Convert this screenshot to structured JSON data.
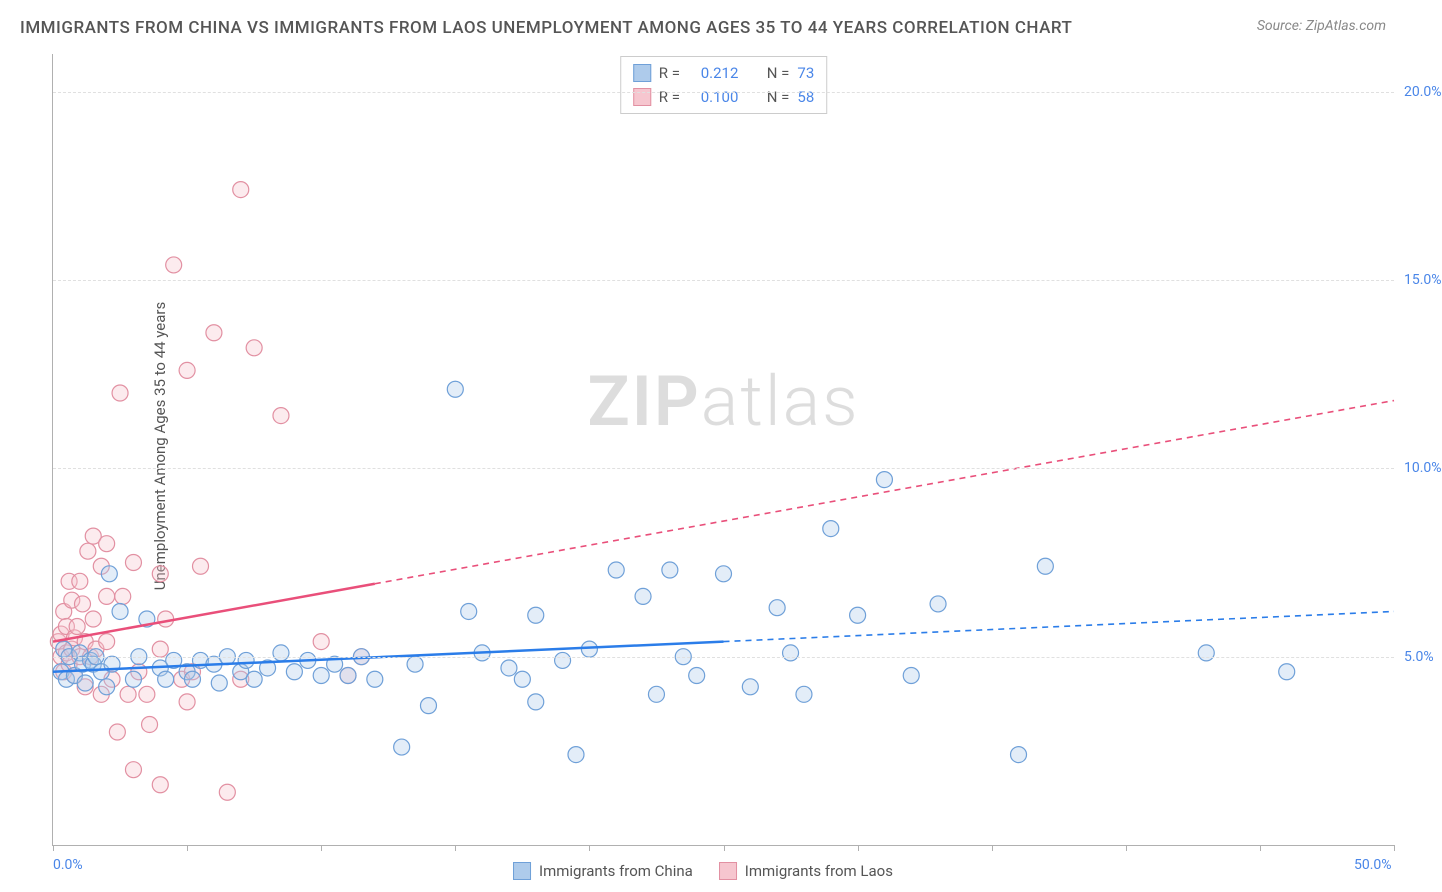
{
  "title": "IMMIGRANTS FROM CHINA VS IMMIGRANTS FROM LAOS UNEMPLOYMENT AMONG AGES 35 TO 44 YEARS CORRELATION CHART",
  "source": "Source: ZipAtlas.com",
  "ylabel": "Unemployment Among Ages 35 to 44 years",
  "watermark_a": "ZIP",
  "watermark_b": "atlas",
  "chart": {
    "type": "scatter",
    "xlim": [
      0,
      50
    ],
    "ylim": [
      0,
      21
    ],
    "x_ticks": [
      0,
      5,
      10,
      15,
      20,
      25,
      30,
      35,
      40,
      45,
      50
    ],
    "y_ticks_labeled": [
      5,
      10,
      15,
      20
    ],
    "x_tick_labels_shown": {
      "0": "0.0%",
      "50": "50.0%"
    },
    "y_tick_labels": {
      "5": "5.0%",
      "10": "10.0%",
      "15": "15.0%",
      "20": "20.0%"
    },
    "grid_color": "#e0e0e0",
    "axis_color": "#b0b0b0",
    "background_color": "#ffffff",
    "tick_label_color": "#4a86e8",
    "marker_radius": 8,
    "series": [
      {
        "name": "Immigrants from China",
        "color_fill": "#aecbeb",
        "color_stroke": "#6fa0d8",
        "trend_color": "#2b7de9",
        "R": "0.212",
        "N": "73",
        "trend": {
          "x1": 0,
          "y1": 4.6,
          "x2": 50,
          "y2": 6.2,
          "solid_until_x": 25
        },
        "points": [
          [
            0.3,
            4.6
          ],
          [
            0.4,
            5.2
          ],
          [
            0.5,
            4.4
          ],
          [
            0.6,
            5.0
          ],
          [
            0.8,
            4.5
          ],
          [
            1.0,
            5.1
          ],
          [
            1.1,
            4.8
          ],
          [
            1.2,
            4.3
          ],
          [
            1.4,
            4.9
          ],
          [
            1.5,
            4.8
          ],
          [
            1.6,
            5.0
          ],
          [
            1.8,
            4.6
          ],
          [
            2.0,
            4.2
          ],
          [
            2.1,
            7.2
          ],
          [
            2.2,
            4.8
          ],
          [
            2.5,
            6.2
          ],
          [
            3.0,
            4.4
          ],
          [
            3.2,
            5.0
          ],
          [
            3.5,
            6.0
          ],
          [
            4.0,
            4.7
          ],
          [
            4.2,
            4.4
          ],
          [
            4.5,
            4.9
          ],
          [
            5.0,
            4.6
          ],
          [
            5.2,
            4.4
          ],
          [
            5.5,
            4.9
          ],
          [
            6.0,
            4.8
          ],
          [
            6.2,
            4.3
          ],
          [
            6.5,
            5.0
          ],
          [
            7.0,
            4.6
          ],
          [
            7.2,
            4.9
          ],
          [
            7.5,
            4.4
          ],
          [
            8.0,
            4.7
          ],
          [
            8.5,
            5.1
          ],
          [
            9.0,
            4.6
          ],
          [
            9.5,
            4.9
          ],
          [
            10.0,
            4.5
          ],
          [
            10.5,
            4.8
          ],
          [
            11.0,
            4.5
          ],
          [
            11.5,
            5.0
          ],
          [
            12.0,
            4.4
          ],
          [
            13.0,
            2.6
          ],
          [
            13.5,
            4.8
          ],
          [
            14.0,
            3.7
          ],
          [
            15.0,
            12.1
          ],
          [
            15.5,
            6.2
          ],
          [
            16.0,
            5.1
          ],
          [
            17.0,
            4.7
          ],
          [
            17.5,
            4.4
          ],
          [
            18.0,
            6.1
          ],
          [
            18.0,
            3.8
          ],
          [
            19.0,
            4.9
          ],
          [
            19.5,
            2.4
          ],
          [
            20.0,
            5.2
          ],
          [
            21.0,
            7.3
          ],
          [
            22.0,
            6.6
          ],
          [
            22.5,
            4.0
          ],
          [
            23.0,
            7.3
          ],
          [
            23.5,
            5.0
          ],
          [
            24.0,
            4.5
          ],
          [
            25.0,
            7.2
          ],
          [
            26.0,
            4.2
          ],
          [
            27.0,
            6.3
          ],
          [
            27.5,
            5.1
          ],
          [
            28.0,
            4.0
          ],
          [
            29.0,
            8.4
          ],
          [
            30.0,
            6.1
          ],
          [
            31.0,
            9.7
          ],
          [
            32.0,
            4.5
          ],
          [
            33.0,
            6.4
          ],
          [
            36.0,
            2.4
          ],
          [
            37.0,
            7.4
          ],
          [
            43.0,
            5.1
          ],
          [
            46.0,
            4.6
          ]
        ]
      },
      {
        "name": "Immigrants from Laos",
        "color_fill": "#f6c6cf",
        "color_stroke": "#e290a2",
        "trend_color": "#e94f7a",
        "R": "0.100",
        "N": "58",
        "trend": {
          "x1": 0,
          "y1": 5.4,
          "x2": 50,
          "y2": 11.8,
          "solid_until_x": 12
        },
        "points": [
          [
            0.2,
            5.4
          ],
          [
            0.3,
            5.0
          ],
          [
            0.3,
            5.6
          ],
          [
            0.4,
            4.6
          ],
          [
            0.4,
            6.2
          ],
          [
            0.5,
            5.1
          ],
          [
            0.5,
            5.8
          ],
          [
            0.6,
            4.8
          ],
          [
            0.6,
            7.0
          ],
          [
            0.7,
            5.2
          ],
          [
            0.7,
            6.5
          ],
          [
            0.8,
            5.5
          ],
          [
            0.8,
            4.5
          ],
          [
            0.9,
            5.8
          ],
          [
            1.0,
            7.0
          ],
          [
            1.0,
            5.0
          ],
          [
            1.1,
            6.4
          ],
          [
            1.2,
            5.4
          ],
          [
            1.2,
            4.2
          ],
          [
            1.3,
            7.8
          ],
          [
            1.4,
            5.0
          ],
          [
            1.5,
            8.2
          ],
          [
            1.5,
            6.0
          ],
          [
            1.6,
            5.2
          ],
          [
            1.8,
            4.0
          ],
          [
            1.8,
            7.4
          ],
          [
            2.0,
            8.0
          ],
          [
            2.0,
            5.4
          ],
          [
            2.0,
            6.6
          ],
          [
            2.2,
            4.4
          ],
          [
            2.4,
            3.0
          ],
          [
            2.5,
            12.0
          ],
          [
            2.6,
            6.6
          ],
          [
            2.8,
            4.0
          ],
          [
            3.0,
            7.5
          ],
          [
            3.0,
            2.0
          ],
          [
            3.2,
            4.6
          ],
          [
            3.5,
            4.0
          ],
          [
            3.6,
            3.2
          ],
          [
            4.0,
            7.2
          ],
          [
            4.0,
            5.2
          ],
          [
            4.0,
            1.6
          ],
          [
            4.2,
            6.0
          ],
          [
            4.5,
            15.4
          ],
          [
            4.8,
            4.4
          ],
          [
            5.0,
            12.6
          ],
          [
            5.0,
            3.8
          ],
          [
            5.2,
            4.6
          ],
          [
            5.5,
            7.4
          ],
          [
            6.0,
            13.6
          ],
          [
            6.5,
            1.4
          ],
          [
            7.0,
            17.4
          ],
          [
            7.0,
            4.4
          ],
          [
            7.5,
            13.2
          ],
          [
            8.5,
            11.4
          ],
          [
            10.0,
            5.4
          ],
          [
            11.0,
            4.5
          ],
          [
            11.5,
            5.0
          ]
        ]
      }
    ]
  },
  "bottom_legend": [
    {
      "label": "Immigrants from China",
      "fill": "#aecbeb",
      "stroke": "#6fa0d8"
    },
    {
      "label": "Immigrants from Laos",
      "fill": "#f6c6cf",
      "stroke": "#e290a2"
    }
  ]
}
